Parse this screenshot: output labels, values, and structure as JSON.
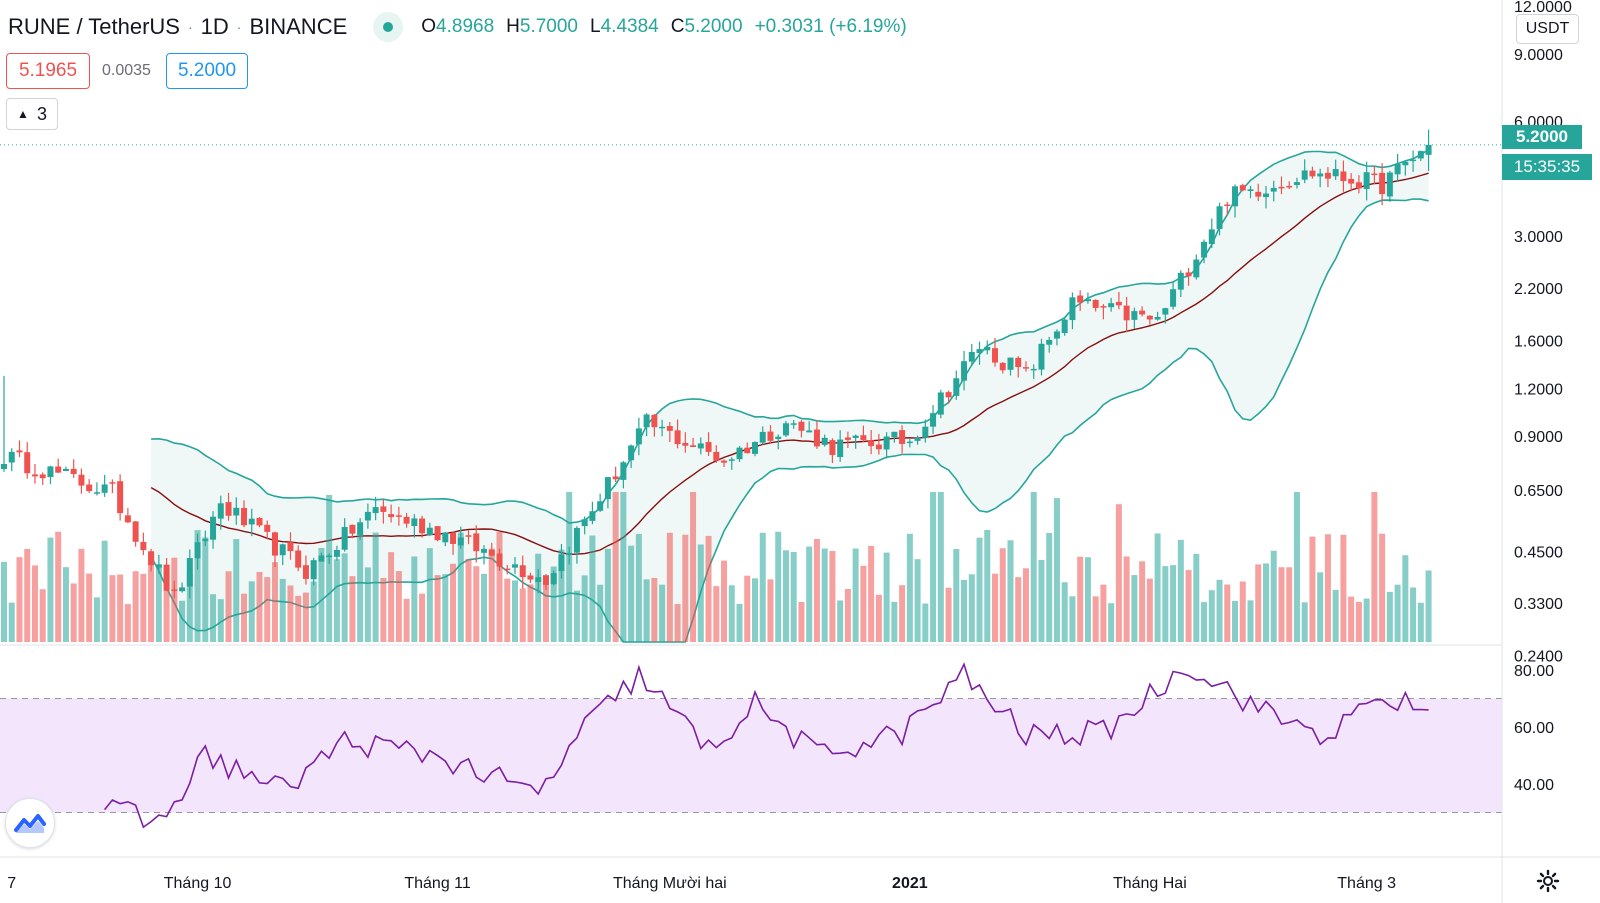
{
  "legend": {
    "symbol": "RUNE / TetherUS",
    "interval": "1D",
    "exchange": "BINANCE",
    "sep": "·",
    "open_label": "O",
    "open": "4.8968",
    "high_label": "H",
    "high": "5.7000",
    "low_label": "L",
    "low": "4.4384",
    "close_label": "C",
    "close": "5.2000",
    "change": "+0.3031 (+6.19%)"
  },
  "quote": {
    "sell": "5.1965",
    "spread": "0.0035",
    "buy": "5.2000"
  },
  "indicators_collapse": {
    "count": "3",
    "icon": "chevron-up-icon"
  },
  "price_scale": {
    "unit": "USDT",
    "labels": [
      "12.0000",
      "9.0000",
      "6.0000",
      "3.0000",
      "2.2000",
      "1.6000",
      "1.2000",
      "0.9000",
      "0.6500",
      "0.4500",
      "0.3300",
      "0.2400"
    ],
    "last_price": "5.2000",
    "countdown": "15:35:35"
  },
  "rsi_scale": {
    "labels": [
      "80.00",
      "60.00",
      "40.00"
    ]
  },
  "time_axis": {
    "labels": [
      "7",
      "Tháng 10",
      "Tháng 11",
      "Tháng Mười hai",
      "2021",
      "Tháng Hai",
      "Tháng 3"
    ]
  },
  "colors": {
    "up": "#26a69a",
    "down": "#ef5350",
    "bb_basis": "#880e0e",
    "rsi_line": "#7b1fa2",
    "rsi_band": "#f3e5fc"
  },
  "icons": {
    "logo": "tradingview-logo-icon",
    "settings": "gear-icon"
  },
  "chart_data": {
    "type": "candlestick",
    "symbol": "RUNE / TetherUS",
    "interval": "1D",
    "log_scale": true,
    "y_range": [
      0.2,
      12.0
    ],
    "x_range": [
      "2020-09-06",
      "2021-03-19"
    ],
    "last": {
      "open": 4.8968,
      "high": 5.7,
      "low": 4.4384,
      "close": 5.2,
      "change": 0.3031,
      "change_pct": 6.19
    },
    "close_anchors": [
      {
        "date": "2020-09-06",
        "close": 0.8
      },
      {
        "date": "2020-09-20",
        "close": 0.64
      },
      {
        "date": "2020-09-28",
        "close": 0.34
      },
      {
        "date": "2020-10-04",
        "close": 0.6
      },
      {
        "date": "2020-10-15",
        "close": 0.4
      },
      {
        "date": "2020-10-24",
        "close": 0.58
      },
      {
        "date": "2020-11-02",
        "close": 0.5
      },
      {
        "date": "2020-11-15",
        "close": 0.38
      },
      {
        "date": "2020-11-21",
        "close": 0.58
      },
      {
        "date": "2020-11-28",
        "close": 0.97
      },
      {
        "date": "2020-12-08",
        "close": 0.78
      },
      {
        "date": "2020-12-16",
        "close": 0.98
      },
      {
        "date": "2020-12-22",
        "close": 0.85
      },
      {
        "date": "2021-01-01",
        "close": 0.88
      },
      {
        "date": "2021-01-10",
        "close": 1.55
      },
      {
        "date": "2021-01-16",
        "close": 1.3
      },
      {
        "date": "2021-01-22",
        "close": 2.0
      },
      {
        "date": "2021-02-02",
        "close": 1.8
      },
      {
        "date": "2021-02-11",
        "close": 3.8
      },
      {
        "date": "2021-02-22",
        "close": 4.4
      },
      {
        "date": "2021-03-03",
        "close": 4.1
      },
      {
        "date": "2021-03-09",
        "close": 5.2
      }
    ],
    "rsi_anchors": [
      {
        "date": "2020-09-19",
        "rsi": 32
      },
      {
        "date": "2020-09-26",
        "rsi": 26
      },
      {
        "date": "2020-10-02",
        "rsi": 50
      },
      {
        "date": "2020-10-12",
        "rsi": 38
      },
      {
        "date": "2020-10-20",
        "rsi": 55
      },
      {
        "date": "2020-11-01",
        "rsi": 50
      },
      {
        "date": "2020-11-14",
        "rsi": 36
      },
      {
        "date": "2020-11-20",
        "rsi": 60
      },
      {
        "date": "2020-11-27",
        "rsi": 78
      },
      {
        "date": "2020-12-06",
        "rsi": 52
      },
      {
        "date": "2020-12-12",
        "rsi": 68
      },
      {
        "date": "2020-12-20",
        "rsi": 50
      },
      {
        "date": "2020-12-31",
        "rsi": 58
      },
      {
        "date": "2021-01-08",
        "rsi": 78
      },
      {
        "date": "2021-01-16",
        "rsi": 57
      },
      {
        "date": "2021-01-26",
        "rsi": 58
      },
      {
        "date": "2021-02-06",
        "rsi": 82
      },
      {
        "date": "2021-02-16",
        "rsi": 65
      },
      {
        "date": "2021-02-24",
        "rsi": 57
      },
      {
        "date": "2021-03-03",
        "rsi": 70
      },
      {
        "date": "2021-03-09",
        "rsi": 66
      }
    ],
    "rsi_bands": [
      70,
      30
    ],
    "rsi_range": [
      20,
      85
    ]
  }
}
